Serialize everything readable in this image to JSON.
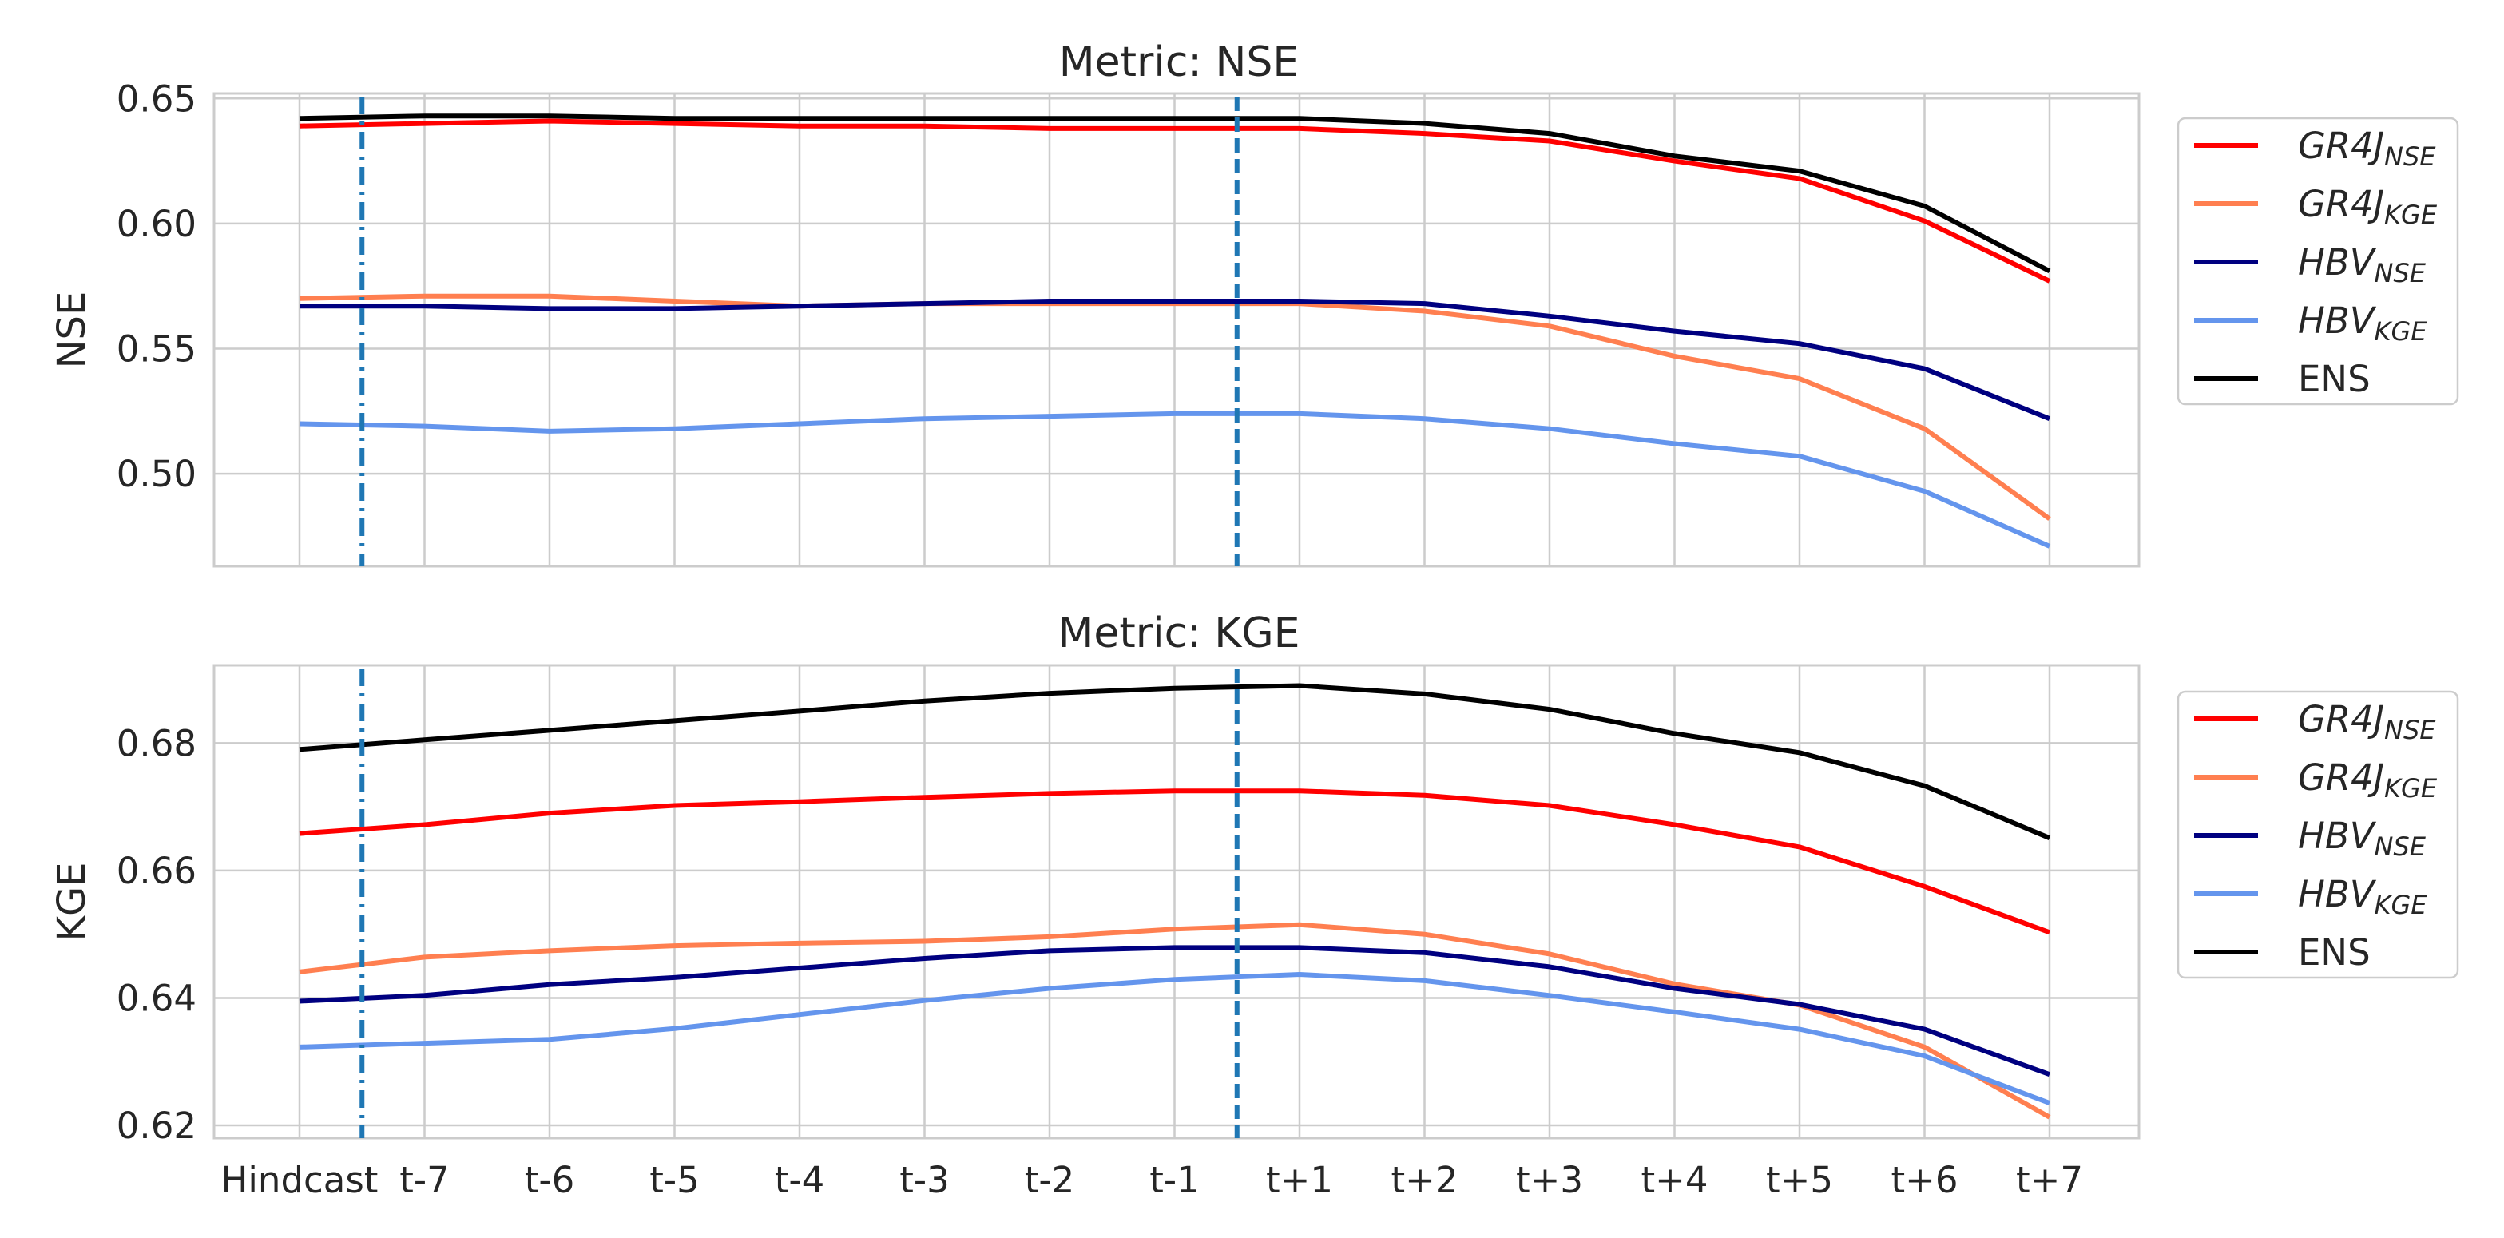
{
  "chart_data": [
    {
      "type": "line",
      "title": "Metric: NSE",
      "xlabel": "",
      "ylabel": "NSE",
      "categories": [
        "Hindcast",
        "t-7",
        "t-6",
        "t-5",
        "t-4",
        "t-3",
        "t-2",
        "t-1",
        "t+1",
        "t+2",
        "t+3",
        "t+4",
        "t+5",
        "t+6",
        "t+7"
      ],
      "ylim": [
        0.463,
        0.652
      ],
      "yticks": [
        0.65,
        0.6,
        0.55,
        0.5
      ],
      "ytick_labels": [
        "0.65",
        "0.60",
        "0.55",
        "0.50"
      ],
      "vlines": [
        {
          "position": 0.5,
          "style": "dashdot",
          "color": "#1f77b4"
        },
        {
          "position": 7.5,
          "style": "dashed",
          "color": "#1f77b4"
        }
      ],
      "grid": true,
      "legend": "right",
      "series": [
        {
          "name": "GR4J",
          "subscript": "NSE",
          "color": "#ff0000",
          "values": [
            0.639,
            0.64,
            0.641,
            0.64,
            0.639,
            0.639,
            0.638,
            0.638,
            0.638,
            0.636,
            0.633,
            0.625,
            0.618,
            0.601,
            0.577
          ]
        },
        {
          "name": "GR4J",
          "subscript": "KGE",
          "color": "#ff7f50",
          "values": [
            0.57,
            0.571,
            0.571,
            0.569,
            0.567,
            0.568,
            0.568,
            0.568,
            0.568,
            0.565,
            0.559,
            0.547,
            0.538,
            0.518,
            0.482
          ]
        },
        {
          "name": "HBV",
          "subscript": "NSE",
          "color": "#000080",
          "values": [
            0.567,
            0.567,
            0.566,
            0.566,
            0.567,
            0.568,
            0.569,
            0.569,
            0.569,
            0.568,
            0.563,
            0.557,
            0.552,
            0.542,
            0.522
          ]
        },
        {
          "name": "HBV",
          "subscript": "KGE",
          "color": "#6495ed",
          "values": [
            0.52,
            0.519,
            0.517,
            0.518,
            0.52,
            0.522,
            0.523,
            0.524,
            0.524,
            0.522,
            0.518,
            0.512,
            0.507,
            0.493,
            0.471
          ]
        },
        {
          "name": "ENS",
          "subscript": "",
          "color": "#000000",
          "values": [
            0.642,
            0.643,
            0.643,
            0.642,
            0.642,
            0.642,
            0.642,
            0.642,
            0.642,
            0.64,
            0.636,
            0.627,
            0.621,
            0.607,
            0.581
          ]
        }
      ]
    },
    {
      "type": "line",
      "title": "Metric: KGE",
      "xlabel": "",
      "ylabel": "KGE",
      "categories": [
        "Hindcast",
        "t-7",
        "t-6",
        "t-5",
        "t-4",
        "t-3",
        "t-2",
        "t-1",
        "t+1",
        "t+2",
        "t+3",
        "t+4",
        "t+5",
        "t+6",
        "t+7"
      ],
      "ylim": [
        0.618,
        0.6922
      ],
      "yticks": [
        0.68,
        0.66,
        0.64,
        0.62
      ],
      "ytick_labels": [
        "0.68",
        "0.66",
        "0.64",
        "0.62"
      ],
      "vlines": [
        {
          "position": 0.5,
          "style": "dashdot",
          "color": "#1f77b4"
        },
        {
          "position": 7.5,
          "style": "dashed",
          "color": "#1f77b4"
        }
      ],
      "grid": true,
      "legend": "right",
      "series": [
        {
          "name": "GR4J",
          "subscript": "NSE",
          "color": "#ff0000",
          "values": [
            0.6658,
            0.6672,
            0.669,
            0.6702,
            0.6708,
            0.6715,
            0.6721,
            0.6725,
            0.6725,
            0.6718,
            0.6702,
            0.6672,
            0.6637,
            0.6575,
            0.6503
          ]
        },
        {
          "name": "GR4J",
          "subscript": "KGE",
          "color": "#ff7f50",
          "values": [
            0.6441,
            0.6464,
            0.6474,
            0.6482,
            0.6486,
            0.6489,
            0.6496,
            0.6508,
            0.6515,
            0.65,
            0.6469,
            0.6422,
            0.6389,
            0.6323,
            0.6213
          ]
        },
        {
          "name": "HBV",
          "subscript": "NSE",
          "color": "#000080",
          "values": [
            0.6395,
            0.6404,
            0.6421,
            0.6432,
            0.6447,
            0.6462,
            0.6474,
            0.6479,
            0.6479,
            0.6471,
            0.6449,
            0.6415,
            0.639,
            0.6351,
            0.628
          ]
        },
        {
          "name": "HBV",
          "subscript": "KGE",
          "color": "#6495ed",
          "values": [
            0.6323,
            0.6329,
            0.6335,
            0.6352,
            0.6374,
            0.6396,
            0.6415,
            0.6429,
            0.6437,
            0.6427,
            0.6404,
            0.6378,
            0.6351,
            0.6309,
            0.6235
          ]
        },
        {
          "name": "ENS",
          "subscript": "",
          "color": "#000000",
          "values": [
            0.679,
            0.6805,
            0.682,
            0.6835,
            0.685,
            0.6866,
            0.6878,
            0.6886,
            0.689,
            0.6877,
            0.6853,
            0.6815,
            0.6785,
            0.6733,
            0.6651
          ]
        }
      ]
    }
  ]
}
